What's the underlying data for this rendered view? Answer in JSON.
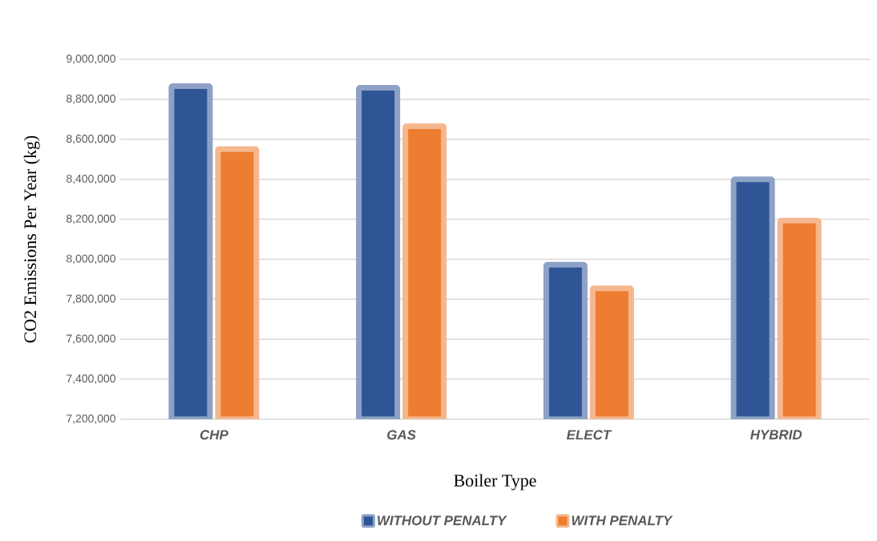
{
  "chart_data": {
    "type": "bar",
    "xlabel": "Boiler Type",
    "ylabel": "CO2 Emissions Per Year (kg)",
    "categories": [
      "CHP",
      "GAS",
      "ELECT",
      "HYBRID"
    ],
    "series": [
      {
        "name": "WITHOUT PENALTY",
        "color": "#2f5597",
        "values": [
          8866000,
          8858000,
          7973000,
          8400000
        ]
      },
      {
        "name": "WITH  PENALTY",
        "color": "#ed7d31",
        "values": [
          8551000,
          8665000,
          7854000,
          8193000
        ]
      }
    ],
    "ylim": [
      7200000,
      9000000
    ],
    "yticks": [
      {
        "value": 7200000,
        "label": "7,200,000"
      },
      {
        "value": 7400000,
        "label": "7,400,000"
      },
      {
        "value": 7600000,
        "label": "7,600,000"
      },
      {
        "value": 7800000,
        "label": "7,800,000"
      },
      {
        "value": 8000000,
        "label": "8,000,000"
      },
      {
        "value": 8200000,
        "label": "8,200,000"
      },
      {
        "value": 8400000,
        "label": "8,400,000"
      },
      {
        "value": 8600000,
        "label": "8,600,000"
      },
      {
        "value": 8800000,
        "label": "8,800,000"
      },
      {
        "value": 9000000,
        "label": "9,000,000"
      }
    ],
    "grid": "y",
    "legend": "bottom"
  }
}
